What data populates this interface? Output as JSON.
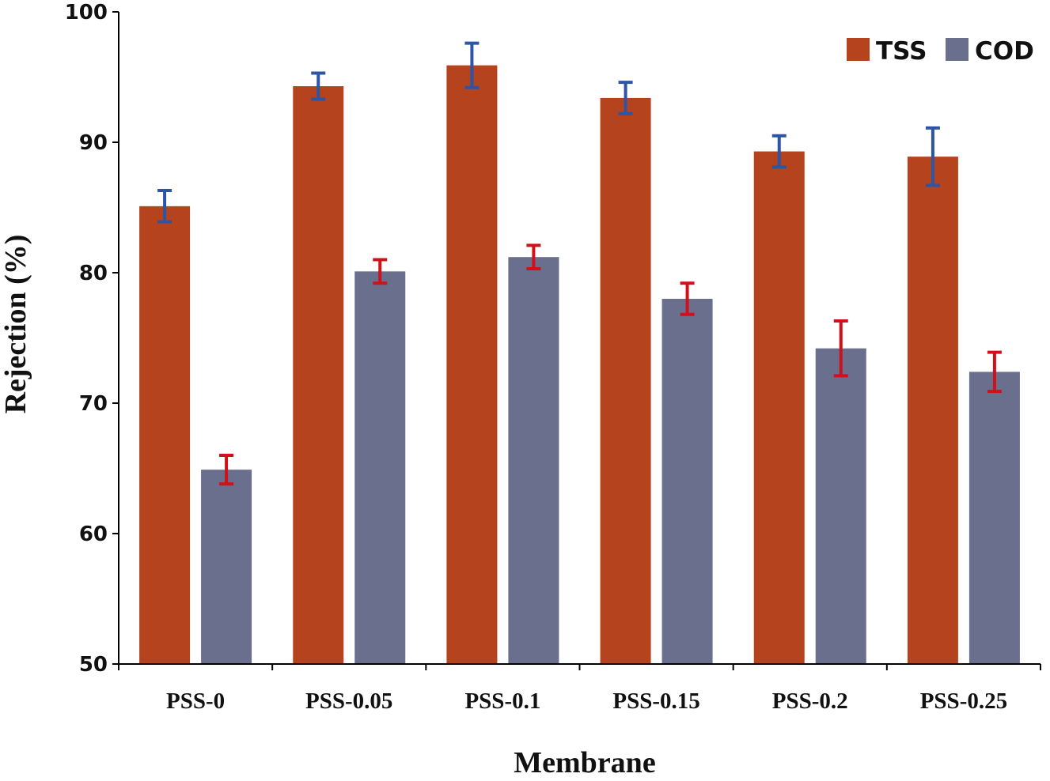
{
  "chart_data": {
    "type": "bar",
    "xlabel": "Membrane",
    "ylabel": "Rejection (%)",
    "ylim": [
      50,
      100
    ],
    "yticks": [
      50,
      60,
      70,
      80,
      90,
      100
    ],
    "categories": [
      "PSS-0",
      "PSS-0.05",
      "PSS-0.1",
      "PSS-0.15",
      "PSS-0.2",
      "PSS-0.25"
    ],
    "legend_position": "top-right",
    "grid": false,
    "series": [
      {
        "name": "TSS",
        "color": "#b5431e",
        "error_color": "#2d55a3",
        "values": [
          85.1,
          94.3,
          95.9,
          93.4,
          89.3,
          88.9
        ],
        "errors": [
          1.2,
          1.0,
          1.7,
          1.2,
          1.2,
          2.2
        ]
      },
      {
        "name": "COD",
        "color": "#6b6f8e",
        "error_color": "#d0101a",
        "values": [
          64.9,
          80.1,
          81.2,
          78.0,
          74.2,
          72.4
        ],
        "errors": [
          1.1,
          0.9,
          0.9,
          1.2,
          2.1,
          1.5
        ]
      }
    ]
  }
}
